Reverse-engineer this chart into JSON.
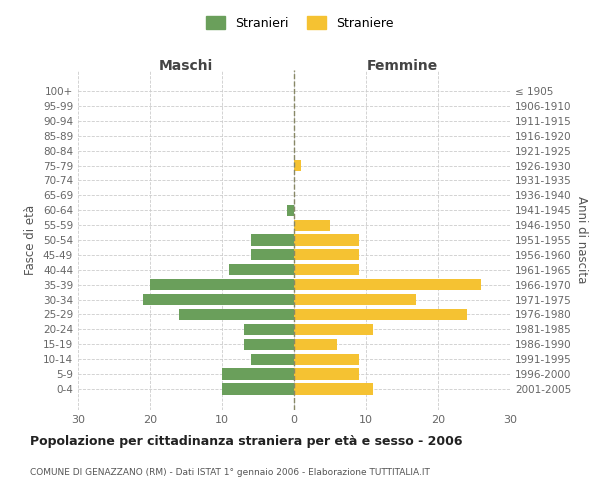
{
  "age_groups": [
    "100+",
    "95-99",
    "90-94",
    "85-89",
    "80-84",
    "75-79",
    "70-74",
    "65-69",
    "60-64",
    "55-59",
    "50-54",
    "45-49",
    "40-44",
    "35-39",
    "30-34",
    "25-29",
    "20-24",
    "15-19",
    "10-14",
    "5-9",
    "0-4"
  ],
  "birth_years": [
    "≤ 1905",
    "1906-1910",
    "1911-1915",
    "1916-1920",
    "1921-1925",
    "1926-1930",
    "1931-1935",
    "1936-1940",
    "1941-1945",
    "1946-1950",
    "1951-1955",
    "1956-1960",
    "1961-1965",
    "1966-1970",
    "1971-1975",
    "1976-1980",
    "1981-1985",
    "1986-1990",
    "1991-1995",
    "1996-2000",
    "2001-2005"
  ],
  "maschi": [
    0,
    0,
    0,
    0,
    0,
    0,
    0,
    0,
    1,
    0,
    6,
    6,
    9,
    20,
    21,
    16,
    7,
    7,
    6,
    10,
    10
  ],
  "femmine": [
    0,
    0,
    0,
    0,
    0,
    1,
    0,
    0,
    0,
    5,
    9,
    9,
    9,
    26,
    17,
    24,
    11,
    6,
    9,
    9,
    11
  ],
  "maschi_color": "#6a9f5b",
  "femmine_color": "#f5c232",
  "title": "Popolazione per cittadinanza straniera per età e sesso - 2006",
  "subtitle": "COMUNE DI GENAZZANO (RM) - Dati ISTAT 1° gennaio 2006 - Elaborazione TUTTITALIA.IT",
  "xlabel_left": "Maschi",
  "xlabel_right": "Femmine",
  "ylabel_left": "Fasce di età",
  "ylabel_right": "Anni di nascita",
  "xlim": 30,
  "legend_stranieri": "Stranieri",
  "legend_straniere": "Straniere",
  "background_color": "#ffffff",
  "grid_color": "#cccccc"
}
